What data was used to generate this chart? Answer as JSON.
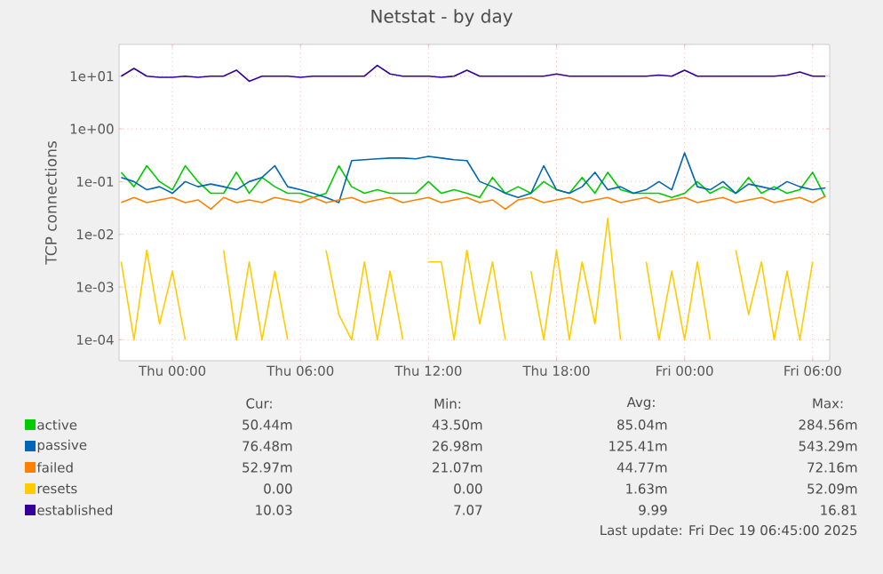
{
  "chart_data": {
    "type": "line",
    "title": "Netstat - by day",
    "ylabel": "TCP connections",
    "log": true,
    "grid": true,
    "legend": "bottom",
    "marker": "none",
    "line_style": "solid",
    "xlim": [
      "2025-12-17T21:30",
      "2025-12-19T06:48"
    ],
    "ylim": [
      4e-05,
      40
    ],
    "xticks": [
      {
        "value": "2025-12-18T00:00",
        "label": "Thu 00:00"
      },
      {
        "value": "2025-12-18T06:00",
        "label": "Thu 06:00"
      },
      {
        "value": "2025-12-18T12:00",
        "label": "Thu 12:00"
      },
      {
        "value": "2025-12-18T18:00",
        "label": "Thu 18:00"
      },
      {
        "value": "2025-12-19T00:00",
        "label": "Fri 00:00"
      },
      {
        "value": "2025-12-19T06:00",
        "label": "Fri 06:00"
      }
    ],
    "yticks": [
      {
        "value": 10,
        "label": "1e+01"
      },
      {
        "value": 1,
        "label": "1e+00"
      },
      {
        "value": 0.1,
        "label": "1e-01"
      },
      {
        "value": 0.01,
        "label": "1e-02"
      },
      {
        "value": 0.001,
        "label": "1e-03"
      },
      {
        "value": 0.0001,
        "label": "1e-04"
      }
    ],
    "x": [
      "2025-12-17T21:36",
      "2025-12-17T22:12",
      "2025-12-17T22:48",
      "2025-12-17T23:24",
      "2025-12-18T00:00",
      "2025-12-18T00:36",
      "2025-12-18T01:12",
      "2025-12-18T01:48",
      "2025-12-18T02:24",
      "2025-12-18T03:00",
      "2025-12-18T03:36",
      "2025-12-18T04:12",
      "2025-12-18T04:48",
      "2025-12-18T05:24",
      "2025-12-18T06:00",
      "2025-12-18T06:36",
      "2025-12-18T07:12",
      "2025-12-18T07:48",
      "2025-12-18T08:24",
      "2025-12-18T09:00",
      "2025-12-18T09:36",
      "2025-12-18T10:12",
      "2025-12-18T10:48",
      "2025-12-18T11:24",
      "2025-12-18T12:00",
      "2025-12-18T12:36",
      "2025-12-18T13:12",
      "2025-12-18T13:48",
      "2025-12-18T14:24",
      "2025-12-18T15:00",
      "2025-12-18T15:36",
      "2025-12-18T16:12",
      "2025-12-18T16:48",
      "2025-12-18T17:24",
      "2025-12-18T18:00",
      "2025-12-18T18:36",
      "2025-12-18T19:12",
      "2025-12-18T19:48",
      "2025-12-18T20:24",
      "2025-12-18T21:00",
      "2025-12-18T21:36",
      "2025-12-18T22:12",
      "2025-12-18T22:48",
      "2025-12-18T23:24",
      "2025-12-19T00:00",
      "2025-12-19T00:36",
      "2025-12-19T01:12",
      "2025-12-19T01:48",
      "2025-12-19T02:24",
      "2025-12-19T03:00",
      "2025-12-19T03:36",
      "2025-12-19T04:12",
      "2025-12-19T04:48",
      "2025-12-19T05:24",
      "2025-12-19T06:00",
      "2025-12-19T06:36"
    ],
    "series": [
      {
        "name": "active",
        "color": "#00cc00",
        "values": [
          0.15,
          0.08,
          0.2,
          0.1,
          0.07,
          0.2,
          0.1,
          0.06,
          0.06,
          0.15,
          0.06,
          0.12,
          0.08,
          0.06,
          0.06,
          0.05,
          0.06,
          0.2,
          0.08,
          0.06,
          0.07,
          0.06,
          0.06,
          0.06,
          0.1,
          0.06,
          0.07,
          0.06,
          0.05,
          0.12,
          0.06,
          0.08,
          0.06,
          0.1,
          0.07,
          0.06,
          0.12,
          0.06,
          0.15,
          0.07,
          0.06,
          0.06,
          0.06,
          0.05,
          0.06,
          0.1,
          0.06,
          0.08,
          0.06,
          0.12,
          0.06,
          0.08,
          0.06,
          0.07,
          0.15,
          0.05
        ]
      },
      {
        "name": "passive",
        "color": "#0066b3",
        "values": [
          0.12,
          0.1,
          0.07,
          0.08,
          0.06,
          0.1,
          0.08,
          0.09,
          0.08,
          0.07,
          0.1,
          0.12,
          0.2,
          0.08,
          0.07,
          0.06,
          0.05,
          0.04,
          0.25,
          0.26,
          0.27,
          0.28,
          0.28,
          0.27,
          0.3,
          0.28,
          0.26,
          0.25,
          0.1,
          0.08,
          0.06,
          0.05,
          0.06,
          0.2,
          0.07,
          0.06,
          0.08,
          0.15,
          0.07,
          0.08,
          0.06,
          0.07,
          0.1,
          0.07,
          0.35,
          0.08,
          0.07,
          0.1,
          0.06,
          0.09,
          0.08,
          0.07,
          0.1,
          0.08,
          0.07,
          0.076
        ]
      },
      {
        "name": "failed",
        "color": "#ff8000",
        "values": [
          0.04,
          0.05,
          0.04,
          0.045,
          0.05,
          0.04,
          0.045,
          0.03,
          0.05,
          0.04,
          0.045,
          0.04,
          0.05,
          0.045,
          0.04,
          0.05,
          0.04,
          0.045,
          0.05,
          0.04,
          0.045,
          0.05,
          0.04,
          0.045,
          0.05,
          0.04,
          0.045,
          0.05,
          0.04,
          0.045,
          0.03,
          0.045,
          0.05,
          0.04,
          0.045,
          0.05,
          0.04,
          0.045,
          0.05,
          0.04,
          0.045,
          0.05,
          0.04,
          0.045,
          0.05,
          0.04,
          0.045,
          0.05,
          0.04,
          0.045,
          0.05,
          0.04,
          0.045,
          0.05,
          0.04,
          0.053
        ]
      },
      {
        "name": "resets",
        "color": "#ffcc00",
        "values": [
          0.003,
          0.0001,
          0.005,
          0.0002,
          0.002,
          0.0001,
          null,
          null,
          0.005,
          0.0001,
          0.003,
          0.0001,
          0.002,
          0.0001,
          null,
          null,
          0.005,
          0.0003,
          0.0001,
          0.003,
          0.0001,
          0.002,
          0.0001,
          null,
          0.003,
          0.003,
          0.0001,
          0.005,
          0.0002,
          0.003,
          0.0001,
          null,
          0.002,
          0.0001,
          0.005,
          0.0001,
          0.003,
          0.0002,
          0.02,
          0.0001,
          null,
          0.003,
          0.0001,
          0.002,
          0.0001,
          0.003,
          0.0001,
          null,
          0.005,
          0.0003,
          0.003,
          0.0001,
          0.002,
          0.0001,
          0.003,
          null
        ]
      },
      {
        "name": "established",
        "color": "#330099",
        "values": [
          10,
          14,
          10,
          9.5,
          9.5,
          10,
          9.5,
          10,
          10,
          13,
          8,
          10,
          10,
          10,
          9.5,
          10,
          10,
          10,
          10,
          10,
          16,
          11,
          10,
          10,
          10,
          9.5,
          10,
          13,
          10,
          10,
          10,
          10,
          10,
          10,
          11,
          10,
          10,
          10,
          10,
          10,
          10,
          10,
          10.5,
          10,
          13,
          10,
          10,
          10,
          10,
          10,
          10,
          10,
          10.5,
          12,
          10,
          10
        ]
      }
    ],
    "annotations": [
      "Cur:",
      "Min:",
      "Avg:",
      "Max:",
      "50.44m",
      "43.50m",
      "85.04m",
      "284.56m",
      "76.48m",
      "26.98m",
      "125.41m",
      "543.29m",
      "52.97m",
      "21.07m",
      "44.77m",
      "72.16m",
      "0.00",
      "0.00",
      "1.63m",
      "52.09m",
      "10.03",
      "7.07",
      "9.99",
      "16.81",
      "Last update: Fri Dec 19 06:45:00 2025"
    ]
  }
}
